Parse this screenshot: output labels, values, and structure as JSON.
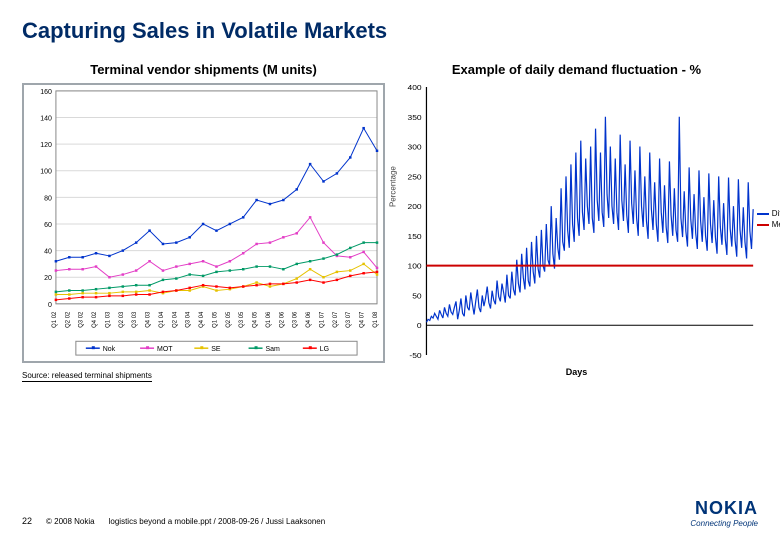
{
  "slide": {
    "title": "Capturing Sales in Volatile Markets",
    "source_note": "Source: released terminal shipments",
    "page_number": "22",
    "copyright": "© 2008 Nokia",
    "file_info": "logistics beyond a mobile.ppt / 2008-09-26 / Jussi Laaksonen",
    "logo_name": "NOKIA",
    "logo_tagline": "Connecting People"
  },
  "chart1": {
    "title": "Terminal vendor shipments (M units)",
    "type": "line",
    "ylim": [
      0,
      160
    ],
    "ytick_step": 20,
    "categories": [
      "Q1 02",
      "Q2 02",
      "Q3 02",
      "Q4 02",
      "Q1 03",
      "Q2 03",
      "Q3 03",
      "Q4 03",
      "Q1 04",
      "Q2 04",
      "Q3 04",
      "Q4 04",
      "Q1 05",
      "Q2 05",
      "Q3 05",
      "Q4 05",
      "Q1 06",
      "Q2 06",
      "Q3 06",
      "Q4 06",
      "Q1 07",
      "Q2 07",
      "Q3 07",
      "Q4 07",
      "Q1 08"
    ],
    "series": [
      {
        "name": "Nok",
        "color": "#0033cc",
        "values": [
          32,
          35,
          35,
          38,
          36,
          40,
          46,
          55,
          45,
          46,
          50,
          60,
          55,
          60,
          65,
          78,
          75,
          78,
          86,
          105,
          92,
          98,
          110,
          132,
          115
        ]
      },
      {
        "name": "MOT",
        "color": "#e33ec6",
        "values": [
          25,
          26,
          26,
          28,
          20,
          22,
          25,
          32,
          25,
          28,
          30,
          32,
          28,
          32,
          38,
          45,
          46,
          50,
          53,
          65,
          46,
          36,
          35,
          39,
          27
        ]
      },
      {
        "name": "SE",
        "color": "#e6c200",
        "values": [
          7,
          7,
          8,
          8,
          8,
          9,
          9,
          10,
          8,
          10,
          10,
          13,
          10,
          11,
          13,
          16,
          13,
          15,
          19,
          26,
          20,
          24,
          25,
          30,
          22
        ]
      },
      {
        "name": "Sam",
        "color": "#009966",
        "values": [
          9,
          10,
          10,
          11,
          12,
          13,
          14,
          14,
          18,
          19,
          22,
          21,
          24,
          25,
          26,
          28,
          28,
          26,
          30,
          32,
          34,
          37,
          42,
          46,
          46
        ]
      },
      {
        "name": "LG",
        "color": "#ff0000",
        "values": [
          3,
          4,
          5,
          5,
          6,
          6,
          7,
          7,
          9,
          10,
          12,
          14,
          13,
          12,
          13,
          14,
          15,
          15,
          16,
          18,
          16,
          18,
          21,
          23,
          24
        ]
      }
    ],
    "grid_color": "#d9d9d9",
    "background": "#ffffff",
    "plot_border": "#888888",
    "marker_size": 2.5,
    "line_width": 1,
    "tick_fontsize": 7,
    "legend_fontsize": 7,
    "legend_position": "bottom-center"
  },
  "chart2": {
    "title": "Example of daily demand fluctuation - %",
    "type": "line",
    "ylabel": "Percentage",
    "xlabel": "Days",
    "ylim": [
      -50,
      400
    ],
    "ytick_step": 50,
    "n_points": 200,
    "diff_color": "#0033cc",
    "median_color": "#cc0000",
    "median_value": 100,
    "diff_values": [
      5,
      10,
      8,
      15,
      12,
      20,
      15,
      10,
      25,
      18,
      12,
      30,
      20,
      15,
      35,
      22,
      18,
      30,
      40,
      10,
      25,
      45,
      20,
      15,
      50,
      30,
      25,
      55,
      35,
      18,
      40,
      60,
      30,
      22,
      50,
      32,
      45,
      65,
      38,
      28,
      58,
      42,
      35,
      75,
      48,
      40,
      70,
      55,
      38,
      85,
      50,
      45,
      90,
      60,
      50,
      110,
      70,
      55,
      120,
      80,
      60,
      130,
      75,
      65,
      140,
      90,
      70,
      150,
      95,
      80,
      160,
      100,
      90,
      170,
      110,
      100,
      200,
      120,
      95,
      180,
      130,
      110,
      230,
      140,
      125,
      250,
      160,
      130,
      270,
      170,
      140,
      290,
      180,
      150,
      310,
      190,
      160,
      280,
      200,
      170,
      300,
      180,
      155,
      330,
      210,
      175,
      290,
      190,
      165,
      350,
      220,
      180,
      300,
      200,
      170,
      280,
      190,
      160,
      320,
      210,
      175,
      270,
      185,
      155,
      310,
      205,
      170,
      260,
      180,
      150,
      300,
      200,
      165,
      250,
      175,
      145,
      290,
      195,
      160,
      240,
      170,
      140,
      280,
      190,
      155,
      235,
      165,
      138,
      275,
      185,
      150,
      230,
      160,
      140,
      350,
      180,
      148,
      225,
      158,
      132,
      265,
      178,
      145,
      220,
      155,
      128,
      260,
      175,
      140,
      215,
      150,
      125,
      255,
      170,
      138,
      210,
      148,
      120,
      250,
      165,
      135,
      205,
      145,
      118,
      248,
      162,
      132,
      200,
      142,
      115,
      245,
      160,
      130,
      198,
      140,
      112,
      240,
      158,
      128,
      195
    ],
    "line_width": 1,
    "label_fontsize": 8,
    "tick_fontsize": 7,
    "legend": [
      {
        "name": "Diff"
      },
      {
        "name": "Median"
      }
    ]
  }
}
